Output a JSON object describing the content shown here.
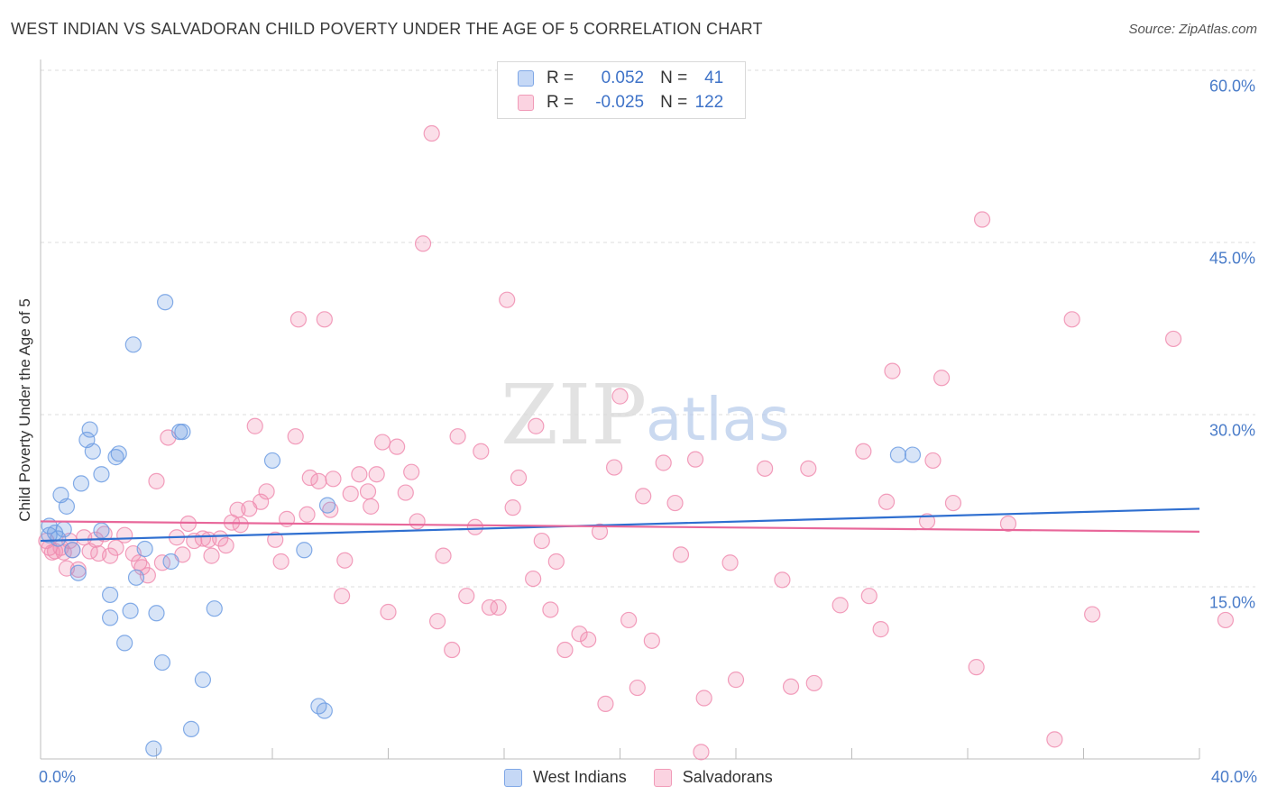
{
  "chart_data": {
    "type": "scatter",
    "title": "WEST INDIAN VS SALVADORAN CHILD POVERTY UNDER THE AGE OF 5 CORRELATION CHART",
    "source": "Source: ZipAtlas.com",
    "ylabel": "Child Poverty Under the Age of 5",
    "xlabel": "",
    "xlim": [
      0,
      40
    ],
    "ylim": [
      0,
      60
    ],
    "x_tick_labels": [
      {
        "value": 0,
        "label": "0.0%"
      },
      {
        "value": 40,
        "label": "40.0%"
      }
    ],
    "y_tick_labels": [
      {
        "value": 15,
        "label": "15.0%"
      },
      {
        "value": 30,
        "label": "30.0%"
      },
      {
        "value": 45,
        "label": "45.0%"
      },
      {
        "value": 60,
        "label": "60.0%"
      }
    ],
    "watermark": {
      "zip": "ZIP",
      "atlas": "atlas"
    },
    "legend_stats": [
      {
        "name": "West Indians",
        "r_label": "R =",
        "r": "0.052",
        "n_label": "N =",
        "n": "41",
        "color": "#7fa7e6"
      },
      {
        "name": "Salvadorans",
        "r_label": "R =",
        "r": "-0.025",
        "n_label": "N =",
        "n": "122",
        "color": "#f19bb8"
      }
    ],
    "series": [
      {
        "name": "West Indians",
        "color": "#6f9ee3",
        "line_color": "#2f6fd0",
        "trend": {
          "x": [
            0,
            40
          ],
          "y": [
            19.0,
            21.8
          ]
        },
        "points": [
          [
            0.3,
            20.3
          ],
          [
            0.3,
            19.5
          ],
          [
            0.5,
            19.7
          ],
          [
            0.6,
            19.2
          ],
          [
            0.7,
            23.0
          ],
          [
            0.8,
            20.0
          ],
          [
            0.9,
            22.0
          ],
          [
            1.1,
            18.2
          ],
          [
            1.3,
            16.2
          ],
          [
            1.4,
            24.0
          ],
          [
            1.6,
            27.8
          ],
          [
            1.7,
            28.7
          ],
          [
            1.8,
            26.8
          ],
          [
            2.1,
            24.8
          ],
          [
            2.1,
            19.9
          ],
          [
            2.4,
            14.3
          ],
          [
            2.4,
            12.3
          ],
          [
            2.6,
            26.3
          ],
          [
            2.7,
            26.6
          ],
          [
            2.9,
            10.1
          ],
          [
            3.1,
            12.9
          ],
          [
            3.2,
            36.1
          ],
          [
            3.3,
            15.8
          ],
          [
            3.6,
            18.3
          ],
          [
            3.9,
            0.9
          ],
          [
            4.0,
            12.7
          ],
          [
            4.2,
            8.4
          ],
          [
            4.3,
            39.8
          ],
          [
            4.5,
            17.2
          ],
          [
            4.8,
            28.5
          ],
          [
            4.9,
            28.5
          ],
          [
            5.2,
            2.6
          ],
          [
            5.6,
            6.9
          ],
          [
            6.0,
            13.1
          ],
          [
            8.0,
            26.0
          ],
          [
            9.1,
            18.2
          ],
          [
            9.9,
            22.1
          ],
          [
            9.6,
            4.6
          ],
          [
            9.8,
            4.2
          ],
          [
            29.6,
            26.5
          ],
          [
            30.1,
            26.5
          ]
        ]
      },
      {
        "name": "Salvadorans",
        "color": "#f08db0",
        "line_color": "#e8679a",
        "trend": {
          "x": [
            0,
            40
          ],
          "y": [
            20.7,
            19.8
          ]
        },
        "points": [
          [
            0.2,
            19.0
          ],
          [
            0.3,
            18.4
          ],
          [
            0.4,
            18.0
          ],
          [
            0.5,
            18.1
          ],
          [
            0.7,
            18.4
          ],
          [
            0.8,
            18.0
          ],
          [
            0.9,
            16.6
          ],
          [
            1.0,
            19.0
          ],
          [
            1.1,
            18.2
          ],
          [
            1.3,
            16.5
          ],
          [
            1.5,
            19.3
          ],
          [
            1.7,
            18.1
          ],
          [
            1.9,
            19.1
          ],
          [
            2.0,
            17.9
          ],
          [
            2.2,
            19.6
          ],
          [
            2.4,
            17.7
          ],
          [
            2.6,
            18.4
          ],
          [
            2.9,
            19.5
          ],
          [
            3.2,
            17.9
          ],
          [
            3.4,
            17.1
          ],
          [
            3.5,
            16.7
          ],
          [
            3.7,
            16.0
          ],
          [
            4.0,
            24.2
          ],
          [
            4.2,
            17.1
          ],
          [
            4.4,
            28.0
          ],
          [
            4.7,
            19.3
          ],
          [
            4.9,
            17.8
          ],
          [
            5.1,
            20.5
          ],
          [
            5.3,
            19.0
          ],
          [
            5.6,
            19.2
          ],
          [
            5.8,
            19.1
          ],
          [
            5.9,
            17.7
          ],
          [
            6.2,
            19.2
          ],
          [
            6.4,
            18.6
          ],
          [
            6.6,
            20.6
          ],
          [
            6.8,
            21.7
          ],
          [
            6.9,
            20.4
          ],
          [
            7.2,
            21.8
          ],
          [
            7.4,
            29.0
          ],
          [
            7.6,
            22.4
          ],
          [
            7.8,
            23.3
          ],
          [
            8.1,
            19.1
          ],
          [
            8.3,
            17.2
          ],
          [
            8.5,
            20.9
          ],
          [
            8.8,
            28.1
          ],
          [
            8.9,
            38.3
          ],
          [
            9.2,
            21.3
          ],
          [
            9.3,
            24.5
          ],
          [
            9.6,
            24.2
          ],
          [
            9.8,
            38.3
          ],
          [
            10.0,
            21.7
          ],
          [
            10.1,
            24.4
          ],
          [
            10.4,
            14.2
          ],
          [
            10.5,
            17.3
          ],
          [
            10.7,
            23.1
          ],
          [
            11.0,
            24.8
          ],
          [
            11.3,
            23.3
          ],
          [
            11.4,
            22.0
          ],
          [
            11.6,
            24.8
          ],
          [
            11.8,
            27.6
          ],
          [
            12.0,
            12.8
          ],
          [
            12.3,
            27.2
          ],
          [
            12.6,
            23.2
          ],
          [
            12.8,
            25.0
          ],
          [
            13.0,
            20.7
          ],
          [
            13.2,
            44.9
          ],
          [
            13.5,
            54.5
          ],
          [
            13.7,
            12.0
          ],
          [
            13.9,
            17.7
          ],
          [
            14.2,
            9.5
          ],
          [
            14.4,
            28.1
          ],
          [
            14.7,
            14.2
          ],
          [
            15.0,
            20.2
          ],
          [
            15.2,
            26.8
          ],
          [
            15.5,
            13.2
          ],
          [
            15.8,
            13.2
          ],
          [
            16.1,
            40.0
          ],
          [
            16.3,
            21.9
          ],
          [
            16.5,
            24.5
          ],
          [
            17.0,
            15.7
          ],
          [
            17.1,
            29.0
          ],
          [
            17.3,
            19.0
          ],
          [
            17.6,
            13.0
          ],
          [
            17.8,
            17.2
          ],
          [
            18.1,
            9.5
          ],
          [
            18.6,
            10.9
          ],
          [
            18.9,
            10.4
          ],
          [
            19.3,
            19.8
          ],
          [
            19.5,
            4.8
          ],
          [
            19.8,
            25.4
          ],
          [
            20.0,
            31.6
          ],
          [
            20.3,
            12.1
          ],
          [
            20.6,
            6.2
          ],
          [
            20.8,
            22.9
          ],
          [
            21.1,
            10.3
          ],
          [
            21.5,
            25.8
          ],
          [
            21.9,
            22.3
          ],
          [
            22.1,
            17.8
          ],
          [
            22.6,
            26.1
          ],
          [
            22.8,
            0.6
          ],
          [
            22.9,
            5.3
          ],
          [
            23.8,
            17.1
          ],
          [
            24.0,
            6.9
          ],
          [
            25.0,
            25.3
          ],
          [
            25.6,
            15.6
          ],
          [
            25.9,
            6.3
          ],
          [
            26.5,
            25.3
          ],
          [
            26.7,
            6.6
          ],
          [
            27.6,
            13.4
          ],
          [
            28.4,
            26.8
          ],
          [
            28.6,
            14.2
          ],
          [
            29.0,
            11.3
          ],
          [
            29.2,
            22.4
          ],
          [
            29.4,
            33.8
          ],
          [
            30.6,
            20.7
          ],
          [
            30.8,
            26.0
          ],
          [
            31.1,
            33.2
          ],
          [
            31.5,
            22.3
          ],
          [
            32.3,
            8.0
          ],
          [
            32.5,
            47.0
          ],
          [
            33.4,
            20.5
          ],
          [
            35.0,
            1.7
          ],
          [
            35.6,
            38.3
          ],
          [
            36.3,
            12.6
          ],
          [
            39.1,
            36.6
          ],
          [
            40.9,
            12.1
          ]
        ]
      }
    ]
  }
}
